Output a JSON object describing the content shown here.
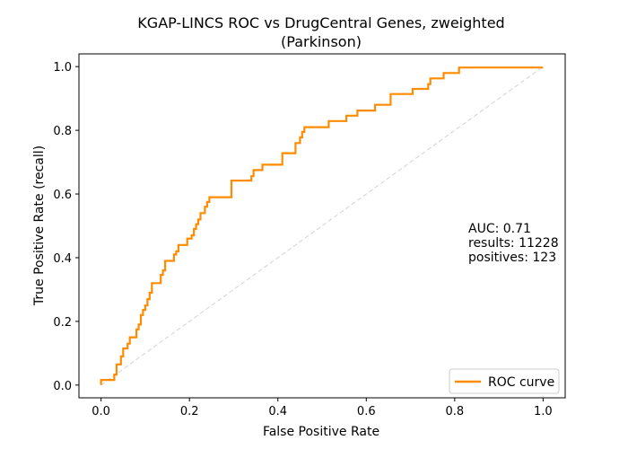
{
  "chart_data": {
    "type": "line",
    "title_line1": "KGAP-LINCS ROC vs DrugCentral Genes, zweighted",
    "title_line2": "(Parkinson)",
    "xlabel": "False Positive Rate",
    "ylabel": "True Positive Rate (recall)",
    "xlim": [
      -0.05,
      1.05
    ],
    "ylim": [
      -0.04,
      1.04
    ],
    "xticks": [
      0.0,
      0.2,
      0.4,
      0.6,
      0.8,
      1.0
    ],
    "xtick_labels": [
      "0.0",
      "0.2",
      "0.4",
      "0.6",
      "0.8",
      "1.0"
    ],
    "yticks": [
      0.0,
      0.2,
      0.4,
      0.6,
      0.8,
      1.0
    ],
    "ytick_labels": [
      "0.0",
      "0.2",
      "0.4",
      "0.6",
      "0.8",
      "1.0"
    ],
    "grid": false,
    "legend_position": "lower-right",
    "annotation": {
      "auc": "AUC: 0.71",
      "results": "results: 11228",
      "positives": "positives: 123"
    },
    "series": [
      {
        "name": "ROC curve",
        "color": "#ff8c00",
        "style": "solid",
        "points": [
          [
            0.0,
            0.0
          ],
          [
            0.0,
            0.016
          ],
          [
            0.03,
            0.016
          ],
          [
            0.03,
            0.033
          ],
          [
            0.035,
            0.033
          ],
          [
            0.035,
            0.065
          ],
          [
            0.045,
            0.065
          ],
          [
            0.045,
            0.09
          ],
          [
            0.05,
            0.09
          ],
          [
            0.05,
            0.115
          ],
          [
            0.06,
            0.115
          ],
          [
            0.06,
            0.13
          ],
          [
            0.065,
            0.13
          ],
          [
            0.065,
            0.15
          ],
          [
            0.08,
            0.15
          ],
          [
            0.08,
            0.175
          ],
          [
            0.085,
            0.175
          ],
          [
            0.085,
            0.19
          ],
          [
            0.09,
            0.19
          ],
          [
            0.09,
            0.22
          ],
          [
            0.095,
            0.22
          ],
          [
            0.095,
            0.236
          ],
          [
            0.1,
            0.236
          ],
          [
            0.1,
            0.25
          ],
          [
            0.105,
            0.25
          ],
          [
            0.105,
            0.27
          ],
          [
            0.11,
            0.27
          ],
          [
            0.11,
            0.29
          ],
          [
            0.115,
            0.29
          ],
          [
            0.115,
            0.32
          ],
          [
            0.135,
            0.32
          ],
          [
            0.135,
            0.346
          ],
          [
            0.14,
            0.346
          ],
          [
            0.14,
            0.36
          ],
          [
            0.145,
            0.36
          ],
          [
            0.145,
            0.39
          ],
          [
            0.165,
            0.39
          ],
          [
            0.165,
            0.41
          ],
          [
            0.17,
            0.41
          ],
          [
            0.17,
            0.42
          ],
          [
            0.175,
            0.42
          ],
          [
            0.175,
            0.44
          ],
          [
            0.195,
            0.44
          ],
          [
            0.195,
            0.46
          ],
          [
            0.205,
            0.46
          ],
          [
            0.205,
            0.47
          ],
          [
            0.21,
            0.47
          ],
          [
            0.21,
            0.49
          ],
          [
            0.215,
            0.49
          ],
          [
            0.215,
            0.505
          ],
          [
            0.22,
            0.505
          ],
          [
            0.22,
            0.52
          ],
          [
            0.225,
            0.52
          ],
          [
            0.225,
            0.54
          ],
          [
            0.235,
            0.54
          ],
          [
            0.235,
            0.56
          ],
          [
            0.24,
            0.56
          ],
          [
            0.24,
            0.575
          ],
          [
            0.245,
            0.575
          ],
          [
            0.245,
            0.59
          ],
          [
            0.295,
            0.59
          ],
          [
            0.295,
            0.642
          ],
          [
            0.34,
            0.642
          ],
          [
            0.34,
            0.656
          ],
          [
            0.345,
            0.656
          ],
          [
            0.345,
            0.675
          ],
          [
            0.365,
            0.675
          ],
          [
            0.365,
            0.692
          ],
          [
            0.41,
            0.692
          ],
          [
            0.41,
            0.728
          ],
          [
            0.44,
            0.728
          ],
          [
            0.44,
            0.76
          ],
          [
            0.45,
            0.76
          ],
          [
            0.45,
            0.778
          ],
          [
            0.455,
            0.778
          ],
          [
            0.455,
            0.795
          ],
          [
            0.46,
            0.795
          ],
          [
            0.46,
            0.81
          ],
          [
            0.515,
            0.81
          ],
          [
            0.515,
            0.829
          ],
          [
            0.555,
            0.829
          ],
          [
            0.555,
            0.846
          ],
          [
            0.58,
            0.846
          ],
          [
            0.58,
            0.862
          ],
          [
            0.62,
            0.862
          ],
          [
            0.62,
            0.88
          ],
          [
            0.655,
            0.88
          ],
          [
            0.655,
            0.914
          ],
          [
            0.705,
            0.914
          ],
          [
            0.705,
            0.93
          ],
          [
            0.74,
            0.93
          ],
          [
            0.74,
            0.945
          ],
          [
            0.745,
            0.945
          ],
          [
            0.745,
            0.963
          ],
          [
            0.775,
            0.963
          ],
          [
            0.775,
            0.98
          ],
          [
            0.81,
            0.98
          ],
          [
            0.81,
            0.997
          ],
          [
            1.0,
            0.997
          ]
        ]
      },
      {
        "name": "",
        "color": "#d3d3d3",
        "style": "dashed",
        "points": [
          [
            0.0,
            0.0
          ],
          [
            1.0,
            1.0
          ]
        ]
      }
    ]
  }
}
